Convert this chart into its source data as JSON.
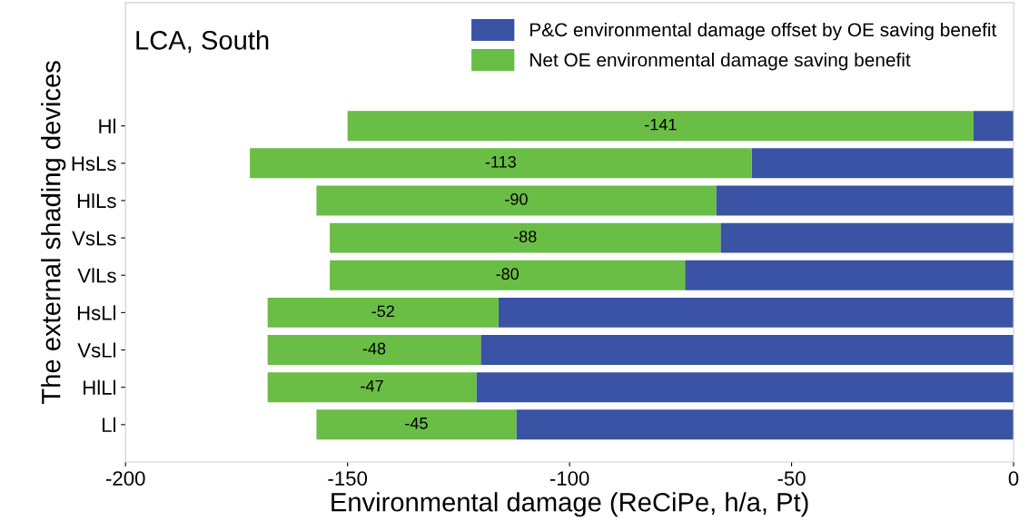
{
  "chart_data": {
    "type": "bar",
    "orientation": "horizontal",
    "stacked": true,
    "title": "LCA, South",
    "xlabel": "Environmental damage (ReCiPe, h/a, Pt)",
    "ylabel": "The external shading devices",
    "categories": [
      "Hl",
      "HsLs",
      "HlLs",
      "VsLs",
      "VlLs",
      "HsLl",
      "VsLl",
      "HlLl",
      "Ll"
    ],
    "series": [
      {
        "name": "P&C environmental damage offset by OE saving benefit",
        "color": "#3a53a4",
        "values": [
          -9,
          -59,
          -67,
          -66,
          -74,
          -116,
          -120,
          -121,
          -112
        ]
      },
      {
        "name": "Net OE environmental damage saving benefit",
        "color": "#6abd45",
        "values": [
          -141,
          -113,
          -90,
          -88,
          -80,
          -52,
          -48,
          -47,
          -45
        ],
        "value_labels": [
          "-141",
          "-113",
          "-90",
          "-88",
          "-80",
          "-52",
          "-48",
          "-47",
          "-45"
        ]
      }
    ],
    "xlim": [
      -200,
      0
    ],
    "xticks": [
      -200,
      -150,
      -100,
      -50,
      0
    ],
    "grid": false,
    "legend": "top right"
  }
}
